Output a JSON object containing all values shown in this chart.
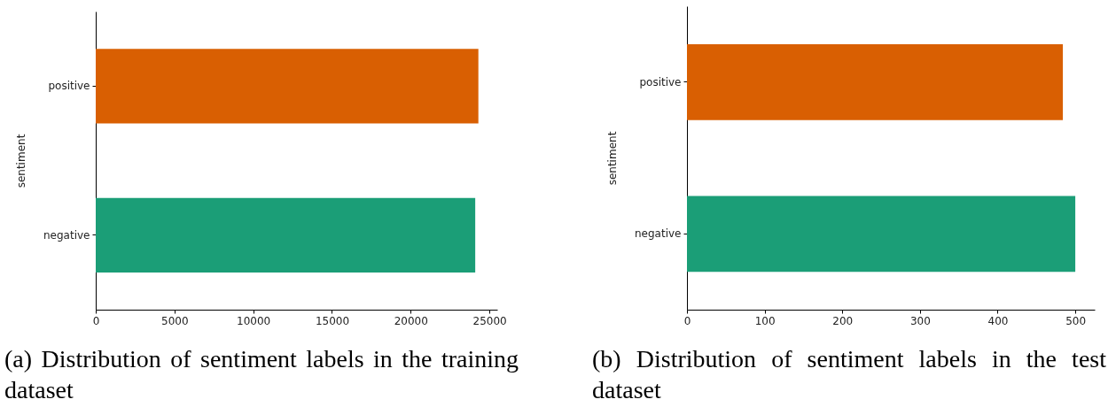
{
  "chart_data": [
    {
      "type": "bar",
      "orientation": "horizontal",
      "title": "(a) Distribution of sentiment labels in the training dataset",
      "ylabel": "sentiment",
      "categories": [
        "positive",
        "negative"
      ],
      "values": [
        24300,
        24100
      ],
      "colors": [
        "#d95f02",
        "#1b9e77"
      ],
      "xlim": [
        0,
        25500
      ],
      "xticks": [
        0,
        5000,
        10000,
        15000,
        20000,
        25000
      ],
      "grid": false
    },
    {
      "type": "bar",
      "orientation": "horizontal",
      "title": "(b) Distribution of sentiment labels in the test dataset",
      "ylabel": "sentiment",
      "categories": [
        "positive",
        "negative"
      ],
      "values": [
        484,
        500
      ],
      "colors": [
        "#d95f02",
        "#1b9e77"
      ],
      "xlim": [
        0,
        525
      ],
      "xticks": [
        0,
        100,
        200,
        300,
        400,
        500
      ],
      "grid": false
    }
  ]
}
